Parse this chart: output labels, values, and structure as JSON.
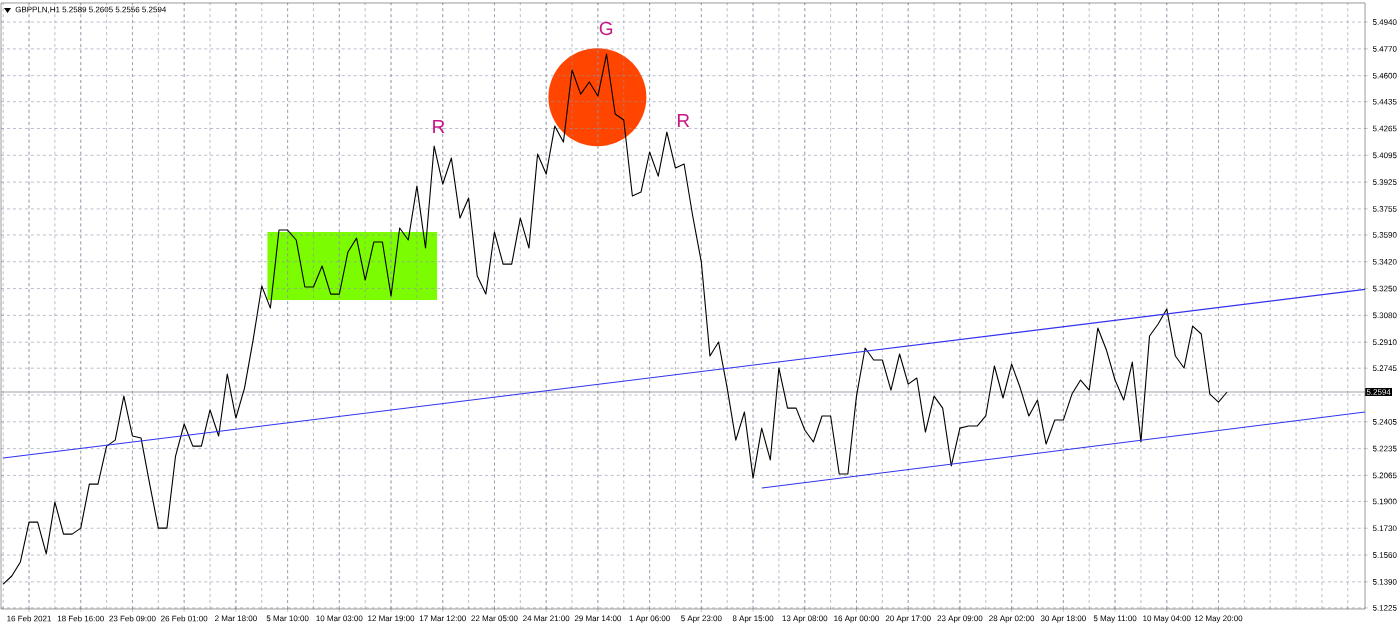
{
  "chart_data": {
    "type": "line",
    "title": "GBPPLN,H1 5.2589 5.2605 5.2556 5.2594",
    "categories": [
      null,
      null,
      null,
      "16 Feb 2021",
      null,
      null,
      null,
      null,
      null,
      "18 Feb 16:00",
      null,
      null,
      null,
      null,
      null,
      "23 Feb 09:00",
      null,
      null,
      null,
      null,
      null,
      "26 Feb 01:00",
      null,
      null,
      null,
      null,
      null,
      "2 Mar 18:00",
      null,
      null,
      null,
      null,
      null,
      "5 Mar 10:00",
      null,
      null,
      null,
      null,
      null,
      "10 Mar 03:00",
      null,
      null,
      null,
      null,
      null,
      "12 Mar 19:00",
      null,
      null,
      null,
      null,
      null,
      "17 Mar 12:00",
      null,
      null,
      null,
      null,
      null,
      "22 Mar 05:00",
      null,
      null,
      null,
      null,
      null,
      "24 Mar 21:00",
      null,
      null,
      null,
      null,
      null,
      "29 Mar 14:00",
      null,
      null,
      null,
      null,
      null,
      "1 Apr 06:00",
      null,
      null,
      null,
      null,
      null,
      "5 Apr 23:00",
      null,
      null,
      null,
      null,
      null,
      "8 Apr 15:00",
      null,
      null,
      null,
      null,
      null,
      "13 Apr 08:00",
      null,
      null,
      null,
      null,
      null,
      "16 Apr 00:00",
      null,
      null,
      null,
      null,
      null,
      "20 Apr 17:00",
      null,
      null,
      null,
      null,
      null,
      "23 Apr 09:00",
      null,
      null,
      null,
      null,
      null,
      "28 Apr 02:00",
      null,
      null,
      null,
      null,
      null,
      "30 Apr 18:00",
      null,
      null,
      null,
      null,
      null,
      "5 May 11:00",
      null,
      null,
      null,
      null,
      null,
      "10 May 04:00",
      null,
      null,
      null,
      null,
      null,
      "12 May 20:00",
      null,
      null,
      null,
      null,
      null,
      null,
      null,
      null,
      null,
      null,
      null,
      null,
      null,
      null,
      null,
      null,
      null
    ],
    "ylim": [
      5.1218,
      5.5061
    ],
    "yticks": [
      {
        "value": 5.1225,
        "label": "5.1225"
      },
      {
        "value": 5.139,
        "label": "5.1390"
      },
      {
        "value": 5.156,
        "label": "5.1560"
      },
      {
        "value": 5.173,
        "label": "5.1730"
      },
      {
        "value": 5.19,
        "label": "5.1900"
      },
      {
        "value": 5.2065,
        "label": "5.2065"
      },
      {
        "value": 5.2235,
        "label": "5.2235"
      },
      {
        "value": 5.2405,
        "label": "5.2405"
      },
      {
        "value": 5.2575,
        "label": null
      },
      {
        "value": 5.2745,
        "label": "5.2745"
      },
      {
        "value": 5.291,
        "label": "5.2910"
      },
      {
        "value": 5.308,
        "label": "5.3080"
      },
      {
        "value": 5.325,
        "label": "5.3250"
      },
      {
        "value": 5.342,
        "label": "5.3420"
      },
      {
        "value": 5.359,
        "label": "5.3590"
      },
      {
        "value": 5.3755,
        "label": "5.3755"
      },
      {
        "value": 5.3925,
        "label": "5.3925"
      },
      {
        "value": 5.4095,
        "label": "5.4095"
      },
      {
        "value": 5.4265,
        "label": "5.4265"
      },
      {
        "value": 5.4435,
        "label": "5.4435"
      },
      {
        "value": 5.46,
        "label": "5.4600"
      },
      {
        "value": 5.477,
        "label": "5.4770"
      },
      {
        "value": 5.494,
        "label": "5.4940"
      }
    ],
    "grid": true,
    "series": [
      {
        "color": "#000000",
        "values": [
          5.1376,
          5.1427,
          5.1516,
          5.1769,
          5.1769,
          5.1567,
          5.1896,
          5.1693,
          5.1693,
          5.1731,
          5.201,
          5.201,
          5.2251,
          5.2289,
          5.2568,
          5.2315,
          5.2302,
          5.201,
          5.1731,
          5.1731,
          5.2188,
          5.2391,
          5.2251,
          5.2251,
          5.248,
          5.2315,
          5.2708,
          5.2429,
          5.2619,
          5.2924,
          5.3266,
          5.3126,
          5.3621,
          5.3621,
          5.3558,
          5.326,
          5.326,
          5.3393,
          5.3215,
          5.3215,
          5.3482,
          5.357,
          5.3304,
          5.3545,
          5.3545,
          5.3203,
          5.3634,
          5.3558,
          5.39,
          5.3507,
          5.4154,
          5.3913,
          5.4078,
          5.3697,
          5.3824,
          5.3329,
          5.3215,
          5.3608,
          5.3405,
          5.3405,
          5.3697,
          5.3507,
          5.4103,
          5.3976,
          5.428,
          5.4179,
          5.4636,
          5.4483,
          5.456,
          5.4471,
          5.4737,
          5.4357,
          5.4319,
          5.3837,
          5.3862,
          5.4116,
          5.3963,
          5.4242,
          5.4014,
          5.404,
          5.371,
          5.3418,
          5.2822,
          5.2911,
          5.2619,
          5.2289,
          5.2467,
          5.2048,
          5.2365,
          5.2163,
          5.2746,
          5.2492,
          5.2492,
          5.2353,
          5.2277,
          5.2442,
          5.2442,
          5.2074,
          5.2074,
          5.2568,
          5.2873,
          5.2797,
          5.2797,
          5.2606,
          5.2835,
          5.2644,
          5.2683,
          5.234,
          5.2568,
          5.2492,
          5.2125,
          5.2365,
          5.2378,
          5.2378,
          5.2442,
          5.2759,
          5.2556,
          5.2771,
          5.2619,
          5.2442,
          5.2543,
          5.2264,
          5.2416,
          5.2416,
          5.2581,
          5.267,
          5.2606,
          5.3,
          5.286,
          5.267,
          5.2543,
          5.2784,
          5.2277,
          5.2949,
          5.3025,
          5.312,
          5.2822,
          5.2746,
          5.3012,
          5.2962,
          5.2581,
          5.253,
          5.2594,
          null,
          null,
          null,
          null,
          null,
          null,
          null,
          null,
          null,
          null,
          null,
          null,
          null,
          null,
          null,
          null
        ]
      },
      {
        "type": "line",
        "color": "#3232f0",
        "values": [
          5.2175,
          null,
          null,
          null,
          null,
          null,
          null,
          null,
          null,
          null,
          null,
          null,
          null,
          null,
          null,
          null,
          null,
          null,
          null,
          null,
          null,
          null,
          null,
          null,
          null,
          null,
          null,
          null,
          null,
          null,
          null,
          null,
          null,
          null,
          null,
          null,
          null,
          null,
          null,
          null,
          null,
          null,
          null,
          null,
          null,
          null,
          null,
          null,
          null,
          null,
          null,
          null,
          null,
          null,
          null,
          null,
          null,
          null,
          null,
          null,
          null,
          null,
          null,
          null,
          null,
          null,
          null,
          null,
          null,
          null,
          null,
          null,
          null,
          null,
          null,
          null,
          null,
          null,
          null,
          null,
          null,
          null,
          null,
          null,
          null,
          null,
          null,
          null,
          null,
          null,
          null,
          null,
          null,
          null,
          null,
          null,
          null,
          null,
          null,
          null,
          null,
          null,
          null,
          null,
          null,
          null,
          null,
          null,
          null,
          null,
          null,
          null,
          null,
          null,
          null,
          null,
          null,
          null,
          null,
          null,
          null,
          null,
          null,
          null,
          null,
          null,
          null,
          null,
          null,
          null,
          null,
          null,
          null,
          null,
          null,
          null,
          null,
          null,
          null,
          null,
          null,
          null,
          null,
          null,
          null,
          null,
          null,
          null,
          null,
          null,
          null,
          null,
          null,
          null,
          null,
          null,
          null,
          null,
          5.3245
        ]
      },
      {
        "type": "line",
        "color": "#3232f0",
        "values": [
          null,
          null,
          null,
          null,
          null,
          null,
          null,
          null,
          null,
          null,
          null,
          null,
          null,
          null,
          null,
          null,
          null,
          null,
          null,
          null,
          null,
          null,
          null,
          null,
          null,
          null,
          null,
          null,
          null,
          null,
          null,
          null,
          null,
          null,
          null,
          null,
          null,
          null,
          null,
          null,
          null,
          null,
          null,
          null,
          null,
          null,
          null,
          null,
          null,
          null,
          null,
          null,
          null,
          null,
          null,
          null,
          null,
          null,
          null,
          null,
          null,
          null,
          null,
          null,
          null,
          null,
          null,
          null,
          null,
          null,
          null,
          null,
          null,
          null,
          null,
          null,
          null,
          null,
          null,
          null,
          null,
          null,
          null,
          null,
          null,
          null,
          null,
          null,
          5.1985,
          null,
          null,
          null,
          null,
          null,
          null,
          null,
          null,
          null,
          null,
          null,
          null,
          null,
          null,
          null,
          null,
          null,
          null,
          null,
          null,
          null,
          null,
          null,
          null,
          null,
          null,
          null,
          null,
          null,
          null,
          null,
          null,
          null,
          null,
          null,
          null,
          null,
          null,
          null,
          null,
          null,
          null,
          null,
          null,
          null,
          null,
          null,
          null,
          null,
          null,
          null,
          null,
          null,
          null,
          null,
          null,
          null,
          null,
          null,
          null,
          null,
          null,
          null,
          null,
          null,
          null,
          null,
          null,
          null,
          5.2467
        ]
      }
    ],
    "ref_lines": [
      {
        "axis": "y",
        "value": 5.2594,
        "label": "5.2594",
        "color": "#8a8a96"
      }
    ],
    "annotations": [
      "R",
      "G",
      "R"
    ]
  }
}
